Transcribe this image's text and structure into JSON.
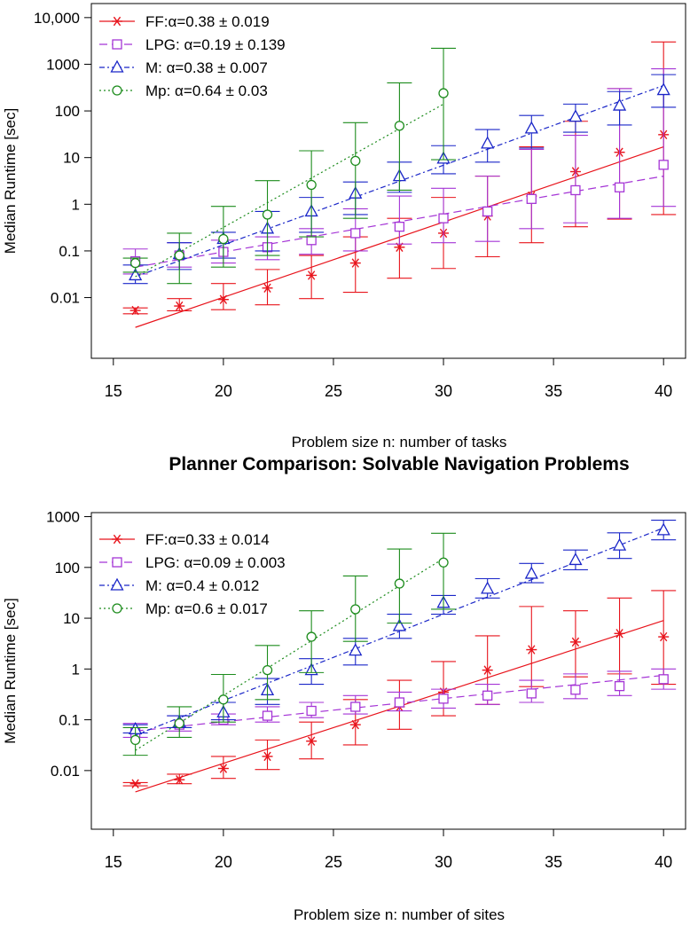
{
  "chart_data": [
    {
      "type": "line",
      "title": "",
      "xlabel": "Problem size n: number of tasks",
      "ylabel": "Median Runtime [sec]",
      "x_scale": "linear",
      "y_scale": "log",
      "xlim": [
        14,
        41
      ],
      "ylim": [
        0.0005,
        20000
      ],
      "x_ticks": [
        15,
        20,
        25,
        30,
        35,
        40
      ],
      "x_tick_labels": [
        "15",
        "20",
        "25",
        "30",
        "35",
        "40"
      ],
      "y_ticks": [
        0.01,
        0.1,
        1,
        10,
        100,
        1000,
        10000
      ],
      "y_tick_labels": [
        "0.01",
        "0.1",
        "1",
        "10",
        "100",
        "1000",
        "10,000"
      ],
      "grid": false,
      "legend_position": "top-left",
      "series": [
        {
          "name": "FF:α=0.38 ± 0.019",
          "color": "#e8141c",
          "marker": "asterisk",
          "line_style": "solid",
          "x": [
            16,
            18,
            20,
            22,
            24,
            26,
            28,
            30,
            32,
            34,
            36,
            38,
            40
          ],
          "y": [
            0.0053,
            0.0066,
            0.0091,
            0.016,
            0.03,
            0.055,
            0.12,
            0.24,
            0.56,
            1.5,
            5,
            13,
            31
          ],
          "err_low": [
            0.0045,
            0.0052,
            0.0055,
            0.007,
            0.0095,
            0.013,
            0.026,
            0.042,
            0.075,
            0.15,
            0.33,
            0.48,
            0.6
          ],
          "err_high": [
            0.006,
            0.0095,
            0.02,
            0.04,
            0.08,
            0.2,
            0.5,
            1.4,
            4,
            17,
            60,
            300,
            3000
          ],
          "fit_x": [
            16,
            40
          ],
          "fit_y": [
            0.0023,
            17
          ]
        },
        {
          "name": "LPG: α=0.19 ± 0.139",
          "color": "#a535d6",
          "marker": "square",
          "line_style": "dashed",
          "x": [
            16,
            18,
            20,
            22,
            24,
            26,
            28,
            30,
            32,
            34,
            36,
            38,
            40
          ],
          "y": [
            0.06,
            0.08,
            0.095,
            0.12,
            0.17,
            0.24,
            0.33,
            0.5,
            0.7,
            1.3,
            2,
            2.3,
            7
          ],
          "err_low": [
            0.032,
            0.045,
            0.055,
            0.065,
            0.085,
            0.1,
            0.14,
            0.15,
            0.16,
            0.3,
            0.4,
            0.5,
            0.9
          ],
          "err_high": [
            0.11,
            0.15,
            0.17,
            0.2,
            0.3,
            0.8,
            1.5,
            2.2,
            4,
            15,
            30,
            300,
            800
          ],
          "fit_x": [
            16,
            40
          ],
          "fit_y": [
            0.045,
            4
          ]
        },
        {
          "name": "M: α=0.38 ± 0.007",
          "color": "#1a26c8",
          "marker": "triangle",
          "line_style": "dashdot",
          "x": [
            16,
            18,
            20,
            22,
            24,
            26,
            28,
            30,
            32,
            34,
            36,
            38,
            40
          ],
          "y": [
            0.03,
            0.085,
            0.18,
            0.3,
            0.7,
            1.7,
            4,
            9.5,
            20,
            42,
            75,
            130,
            280
          ],
          "err_low": [
            0.02,
            0.04,
            0.07,
            0.1,
            0.25,
            0.6,
            1.8,
            4.5,
            8,
            16,
            35,
            50,
            120
          ],
          "err_high": [
            0.05,
            0.15,
            0.25,
            0.7,
            1.4,
            3,
            8,
            18,
            40,
            80,
            140,
            260,
            600
          ],
          "fit_x": [
            16,
            40
          ],
          "fit_y": [
            0.028,
            350
          ]
        },
        {
          "name": "Mp: α=0.64 ± 0.03",
          "color": "#1d8c1d",
          "marker": "circle",
          "line_style": "dotted",
          "x": [
            16,
            18,
            20,
            22,
            24,
            26,
            28,
            30
          ],
          "y": [
            0.055,
            0.08,
            0.18,
            0.6,
            2.6,
            8.5,
            48,
            240
          ],
          "err_low": [
            0.035,
            0.02,
            0.045,
            0.08,
            0.2,
            0.5,
            2,
            9
          ],
          "err_high": [
            0.07,
            0.24,
            0.9,
            3.2,
            14,
            56,
            400,
            2200
          ],
          "fit_x": [
            16,
            30
          ],
          "fit_y": [
            0.028,
            140
          ]
        }
      ]
    },
    {
      "type": "line",
      "title": "Planner Comparison: Solvable Navigation Problems",
      "xlabel": "Problem size n: number of sites",
      "ylabel": "Median Runtime [sec]",
      "x_scale": "linear",
      "y_scale": "log",
      "xlim": [
        14,
        41
      ],
      "ylim": [
        0.0007,
        1200
      ],
      "x_ticks": [
        15,
        20,
        25,
        30,
        35,
        40
      ],
      "x_tick_labels": [
        "15",
        "20",
        "25",
        "30",
        "35",
        "40"
      ],
      "y_ticks": [
        0.01,
        0.1,
        1,
        10,
        100,
        1000
      ],
      "y_tick_labels": [
        "0.01",
        "0.1",
        "1",
        "10",
        "100",
        "1000"
      ],
      "grid": false,
      "legend_position": "top-left",
      "series": [
        {
          "name": "FF:α=0.33 ± 0.014",
          "color": "#e8141c",
          "marker": "asterisk",
          "line_style": "solid",
          "x": [
            16,
            18,
            20,
            22,
            24,
            26,
            28,
            30,
            32,
            34,
            36,
            38,
            40
          ],
          "y": [
            0.0055,
            0.0066,
            0.011,
            0.019,
            0.038,
            0.08,
            0.18,
            0.35,
            0.95,
            2.4,
            3.4,
            5,
            4.3
          ],
          "err_low": [
            0.005,
            0.0055,
            0.007,
            0.0105,
            0.017,
            0.032,
            0.065,
            0.12,
            0.2,
            0.45,
            0.7,
            0.8,
            0.5
          ],
          "err_high": [
            0.0058,
            0.0085,
            0.019,
            0.04,
            0.09,
            0.25,
            0.6,
            1.4,
            4.5,
            17,
            14,
            25,
            35
          ],
          "fit_x": [
            16,
            40
          ],
          "fit_y": [
            0.0038,
            9
          ]
        },
        {
          "name": "LPG: α=0.09 ± 0.003",
          "color": "#a535d6",
          "marker": "square",
          "line_style": "dashed",
          "x": [
            16,
            18,
            20,
            22,
            24,
            26,
            28,
            30,
            32,
            34,
            36,
            38,
            40
          ],
          "y": [
            0.055,
            0.08,
            0.1,
            0.12,
            0.15,
            0.18,
            0.22,
            0.26,
            0.3,
            0.33,
            0.39,
            0.46,
            0.63
          ],
          "err_low": [
            0.045,
            0.06,
            0.08,
            0.09,
            0.11,
            0.13,
            0.15,
            0.17,
            0.2,
            0.22,
            0.26,
            0.3,
            0.4
          ],
          "err_high": [
            0.085,
            0.12,
            0.13,
            0.18,
            0.22,
            0.3,
            0.35,
            0.4,
            0.5,
            0.6,
            0.8,
            0.9,
            1
          ],
          "fit_x": [
            16,
            40
          ],
          "fit_y": [
            0.06,
            0.75
          ]
        },
        {
          "name": "M: α=0.4 ± 0.012",
          "color": "#1a26c8",
          "marker": "triangle",
          "line_style": "dashdot",
          "x": [
            16,
            18,
            20,
            22,
            24,
            26,
            28,
            30,
            32,
            34,
            36,
            38,
            40
          ],
          "y": [
            0.065,
            0.09,
            0.14,
            0.38,
            0.95,
            2.3,
            7,
            20,
            38,
            75,
            140,
            270,
            540
          ],
          "err_low": [
            0.055,
            0.07,
            0.1,
            0.2,
            0.5,
            1.2,
            4,
            12,
            25,
            50,
            90,
            150,
            350
          ],
          "err_high": [
            0.08,
            0.12,
            0.22,
            0.65,
            1.6,
            4,
            12,
            28,
            60,
            120,
            220,
            480,
            850
          ],
          "fit_x": [
            16,
            40
          ],
          "fit_y": [
            0.05,
            600
          ]
        },
        {
          "name": "Mp: α=0.6 ± 0.017",
          "color": "#1d8c1d",
          "marker": "circle",
          "line_style": "dotted",
          "x": [
            16,
            18,
            20,
            22,
            24,
            26,
            28,
            30
          ],
          "y": [
            0.04,
            0.085,
            0.25,
            0.95,
            4.3,
            15,
            48,
            125
          ],
          "err_low": [
            0.02,
            0.045,
            0.09,
            0.25,
            0.85,
            3.5,
            8,
            15
          ],
          "err_high": [
            0.07,
            0.18,
            0.78,
            2.9,
            14,
            68,
            230,
            470
          ],
          "fit_x": [
            16,
            30
          ],
          "fit_y": [
            0.025,
            150
          ]
        }
      ]
    }
  ]
}
